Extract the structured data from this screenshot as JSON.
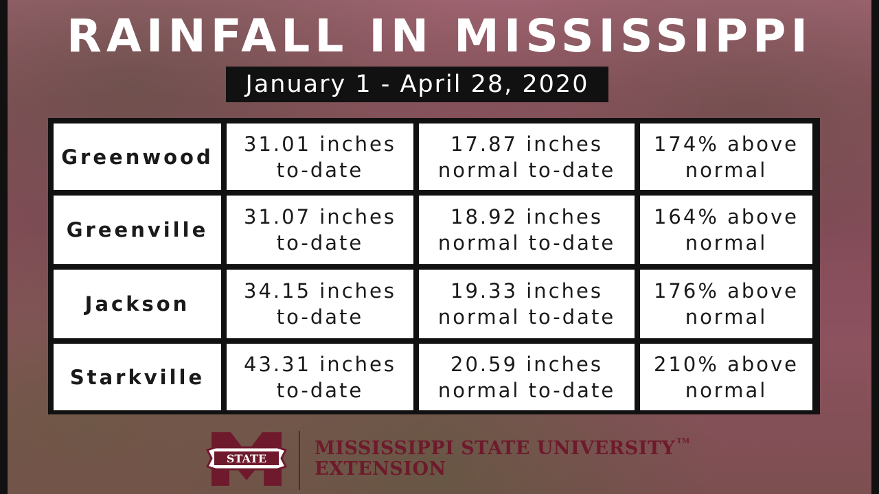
{
  "title": "RAINFALL IN MISSISSIPPI",
  "date_range": "January 1 - April 28, 2020",
  "rows": [
    {
      "city": "Greenwood",
      "actual": [
        "31.01 inches",
        "to-date"
      ],
      "normal": [
        "17.87 inches",
        "normal to-date"
      ],
      "percent": [
        "174% above",
        "normal"
      ]
    },
    {
      "city": "Greenville",
      "actual": [
        "31.07 inches",
        "to-date"
      ],
      "normal": [
        "18.92 inches",
        "normal to-date"
      ],
      "percent": [
        "164% above",
        "normal"
      ]
    },
    {
      "city": "Jackson",
      "actual": [
        "34.15 inches",
        "to-date"
      ],
      "normal": [
        "19.33 inches",
        "normal to-date"
      ],
      "percent": [
        "176% above",
        "normal"
      ]
    },
    {
      "city": "Starkville",
      "actual": [
        "43.31 inches",
        "to-date"
      ],
      "normal": [
        "20.59 inches",
        "normal to-date"
      ],
      "percent": [
        "210% above",
        "normal"
      ]
    }
  ],
  "logo": {
    "emblem_text": "STATE",
    "line1": "MISSISSIPPI STATE UNIVERSITY",
    "trademark": "TM",
    "line2": "EXTENSION"
  },
  "colors": {
    "maroon": "#6e1a2c",
    "frame": "#111111",
    "cell": "#ffffff"
  }
}
